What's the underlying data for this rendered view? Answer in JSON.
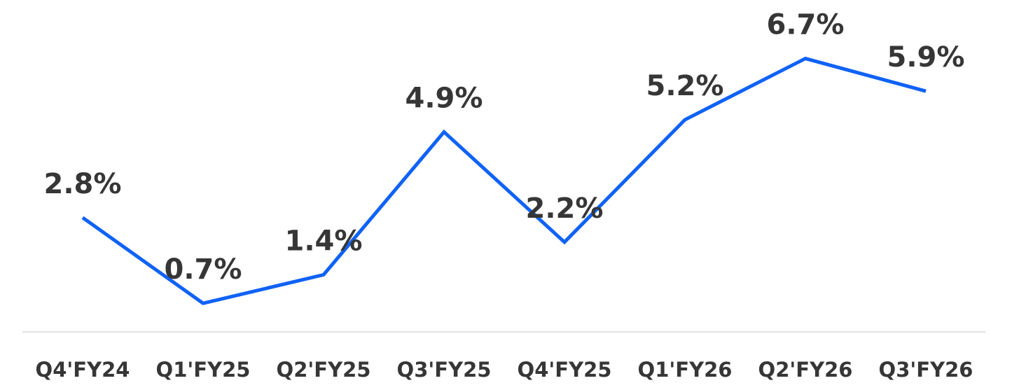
{
  "chart_data": {
    "type": "line",
    "categories": [
      "Q4'FY24",
      "Q1'FY25",
      "Q2'FY25",
      "Q3'FY25",
      "Q4'FY25",
      "Q1'FY26",
      "Q2'FY26",
      "Q3'FY26"
    ],
    "values": [
      2.8,
      0.7,
      1.4,
      4.9,
      2.2,
      5.2,
      6.7,
      5.9
    ],
    "value_labels": [
      "2.8%",
      "0.7%",
      "1.4%",
      "4.9%",
      "2.2%",
      "5.2%",
      "6.7%",
      "5.9%"
    ],
    "color": "#0f62f5",
    "ylim": [
      0,
      8.1
    ]
  }
}
